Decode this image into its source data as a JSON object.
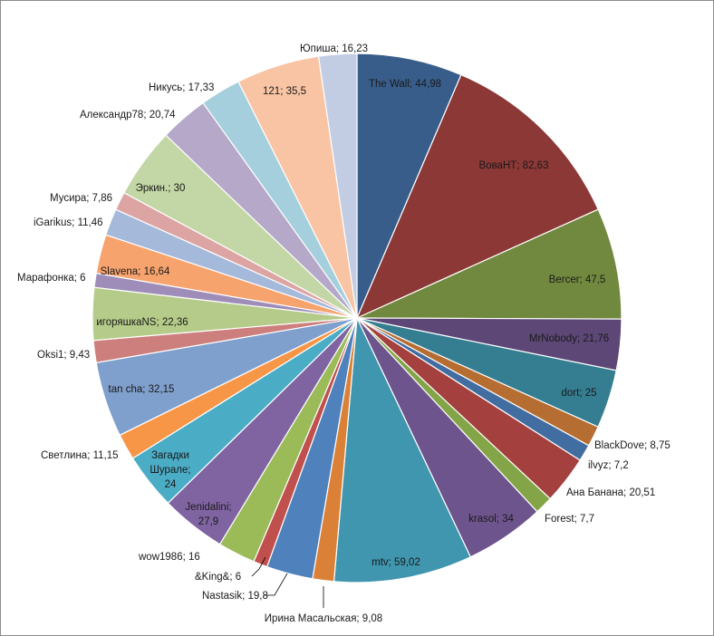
{
  "chart_data": {
    "type": "pie",
    "title": "",
    "start_angle_deg": 0,
    "direction": "clockwise",
    "labels": [
      "The Wall; 44,98",
      "ВоваНТ; 82,63",
      "Bercer; 47,5",
      "MrNobody; 21,76",
      "dort; 25",
      "BlackDove; 8,75",
      "ilvyz; 7,2",
      "Ана Банана; 20,51",
      "Forest; 7,7",
      "krasol; 34",
      "mtv; 59,02",
      "Ирина Масальская; 9,08",
      "Nastasik; 19,8",
      "&King&; 6",
      "wow1986; 16",
      "Jenidalini; 27,9",
      "Загадки Шурале; 24",
      "Светлина; 11,15",
      "tan cha; 32,15",
      "Oksi1; 9,43",
      "игоряшкаNS; 22,36",
      "Марафонка; 6",
      "Slavena; 16,64",
      "iGarikus; 11,46",
      "Мусира; 7,86",
      "Эркин.; 30",
      "Александр78; 20,74",
      "Никусь; 17,33",
      "121; 35,5",
      "Юпиша; 16,23"
    ],
    "values": [
      44.98,
      82.63,
      47.5,
      21.76,
      25,
      8.75,
      7.2,
      20.51,
      7.7,
      34,
      59.02,
      9.08,
      19.8,
      6,
      16,
      27.9,
      24,
      11.15,
      32.15,
      9.43,
      22.36,
      6,
      16.64,
      11.46,
      7.86,
      30,
      20.74,
      17.33,
      35.5,
      16.23
    ],
    "colors": [
      "#385D8A",
      "#8C3836",
      "#71893F",
      "#5C4776",
      "#357D91",
      "#B66D31",
      "#426DA1",
      "#A4403D",
      "#83A447",
      "#6E548D",
      "#3F96AE",
      "#DA8137",
      "#4F81BD",
      "#C0504D",
      "#9BBB59",
      "#8064A2",
      "#4BACC6",
      "#F79646",
      "#7F9FCC",
      "#CD7F7D",
      "#B5CB89",
      "#9F8DB9",
      "#F7A36D",
      "#A5B9DB",
      "#DCA5A4",
      "#C3D6A5",
      "#B5A8C8",
      "#A5CFDC",
      "#F9C4A3",
      "#C2CDE3"
    ],
    "label_positions": [
      "inside",
      "inside",
      "inside",
      "inside",
      "inside",
      "outside",
      "outside",
      "outside",
      "outside",
      "inside",
      "inside",
      "outside",
      "outside",
      "outside",
      "outside",
      "inside",
      "inside",
      "outside",
      "inside",
      "outside",
      "inside",
      "outside",
      "inside",
      "outside",
      "outside",
      "inside",
      "outside",
      "outside",
      "inside",
      "outside"
    ]
  }
}
